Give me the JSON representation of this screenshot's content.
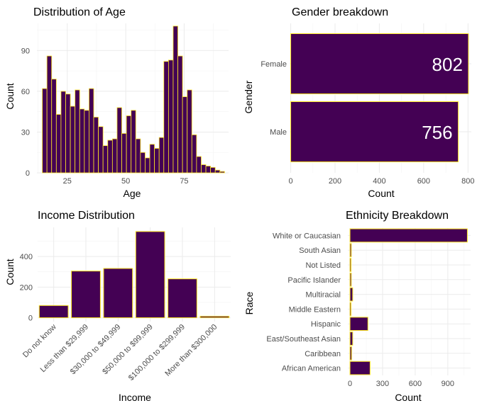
{
  "colors": {
    "fill": "#440154",
    "outline": "#FDE725",
    "label": "#FFFFFF"
  },
  "chart_data": [
    {
      "type": "bar",
      "title": "Distribution of Age",
      "xlabel": "Age",
      "ylabel": "Count",
      "xticks": [
        25,
        50,
        75
      ],
      "yticks": [
        0,
        30,
        60,
        90
      ],
      "xlim": [
        12,
        94
      ],
      "ylim": [
        0,
        110
      ],
      "bins": [
        {
          "x0": 14.3,
          "x1": 16.3,
          "count": 62
        },
        {
          "x0": 16.3,
          "x1": 18.3,
          "count": 86
        },
        {
          "x0": 18.3,
          "x1": 20.3,
          "count": 69
        },
        {
          "x0": 20.3,
          "x1": 22.3,
          "count": 43
        },
        {
          "x0": 22.3,
          "x1": 24.3,
          "count": 60
        },
        {
          "x0": 24.3,
          "x1": 26.3,
          "count": 58
        },
        {
          "x0": 26.3,
          "x1": 28.3,
          "count": 49
        },
        {
          "x0": 28.3,
          "x1": 30.3,
          "count": 61
        },
        {
          "x0": 30.3,
          "x1": 32.3,
          "count": 47
        },
        {
          "x0": 32.3,
          "x1": 34.3,
          "count": 46
        },
        {
          "x0": 34.3,
          "x1": 36.3,
          "count": 62
        },
        {
          "x0": 36.3,
          "x1": 38.3,
          "count": 41
        },
        {
          "x0": 38.3,
          "x1": 40.3,
          "count": 34
        },
        {
          "x0": 40.3,
          "x1": 42.3,
          "count": 20
        },
        {
          "x0": 42.3,
          "x1": 44.3,
          "count": 24
        },
        {
          "x0": 44.3,
          "x1": 46.3,
          "count": 25
        },
        {
          "x0": 46.3,
          "x1": 48.3,
          "count": 48
        },
        {
          "x0": 48.3,
          "x1": 50.3,
          "count": 29
        },
        {
          "x0": 50.3,
          "x1": 52.3,
          "count": 42
        },
        {
          "x0": 52.3,
          "x1": 54.3,
          "count": 46
        },
        {
          "x0": 54.3,
          "x1": 56.3,
          "count": 25
        },
        {
          "x0": 56.3,
          "x1": 58.3,
          "count": 15
        },
        {
          "x0": 58.3,
          "x1": 60.3,
          "count": 11
        },
        {
          "x0": 60.3,
          "x1": 62.3,
          "count": 21
        },
        {
          "x0": 62.3,
          "x1": 64.3,
          "count": 18
        },
        {
          "x0": 64.3,
          "x1": 66.3,
          "count": 26
        },
        {
          "x0": 66.3,
          "x1": 68.3,
          "count": 82
        },
        {
          "x0": 68.3,
          "x1": 70.3,
          "count": 83
        },
        {
          "x0": 70.3,
          "x1": 72.3,
          "count": 108
        },
        {
          "x0": 72.3,
          "x1": 74.3,
          "count": 86
        },
        {
          "x0": 74.3,
          "x1": 76.3,
          "count": 56
        },
        {
          "x0": 76.3,
          "x1": 78.3,
          "count": 61
        },
        {
          "x0": 78.3,
          "x1": 80.3,
          "count": 28
        },
        {
          "x0": 80.3,
          "x1": 82.3,
          "count": 12
        },
        {
          "x0": 82.3,
          "x1": 84.3,
          "count": 6
        },
        {
          "x0": 84.3,
          "x1": 86.3,
          "count": 5
        },
        {
          "x0": 86.3,
          "x1": 88.3,
          "count": 4
        },
        {
          "x0": 88.3,
          "x1": 90.3,
          "count": 2
        },
        {
          "x0": 90.3,
          "x1": 92.3,
          "count": 1
        }
      ]
    },
    {
      "type": "bar",
      "orientation": "horizontal",
      "title": "Gender breakdown",
      "xlabel": "Count",
      "ylabel": "Gender",
      "categories": [
        "Male",
        "Female"
      ],
      "values": [
        756,
        802
      ],
      "data_labels": [
        "756",
        "802"
      ],
      "xticks": [
        0,
        200,
        400,
        600,
        800
      ],
      "xlim": [
        -5,
        815
      ]
    },
    {
      "type": "bar",
      "title": "Income Distribution",
      "xlabel": "Income",
      "ylabel": "Count",
      "categories": [
        "Do not know",
        "Less than $29,999",
        "$30,000 to $49,999",
        "$50,000 to $99,999",
        "$100,000 to $299,999",
        "More than $300,000"
      ],
      "values": [
        80,
        305,
        322,
        563,
        254,
        10
      ],
      "yticks": [
        0,
        200,
        400
      ],
      "ylim": [
        -25,
        590
      ]
    },
    {
      "type": "bar",
      "orientation": "horizontal",
      "title": "Ethnicity Breakdown",
      "xlabel": "Count",
      "ylabel": "Race",
      "categories": [
        "African American",
        "Caribbean",
        "East/Southeast Asian",
        "Hispanic",
        "Middle Eastern",
        "Multiracial",
        "Pacific Islander",
        "Not Listed",
        "South Asian",
        "White or Caucasian"
      ],
      "values": [
        185,
        15,
        25,
        165,
        5,
        25,
        12,
        10,
        12,
        1080
      ],
      "xticks": [
        0,
        300,
        600,
        900
      ],
      "xlim": [
        -20,
        1110
      ]
    }
  ]
}
